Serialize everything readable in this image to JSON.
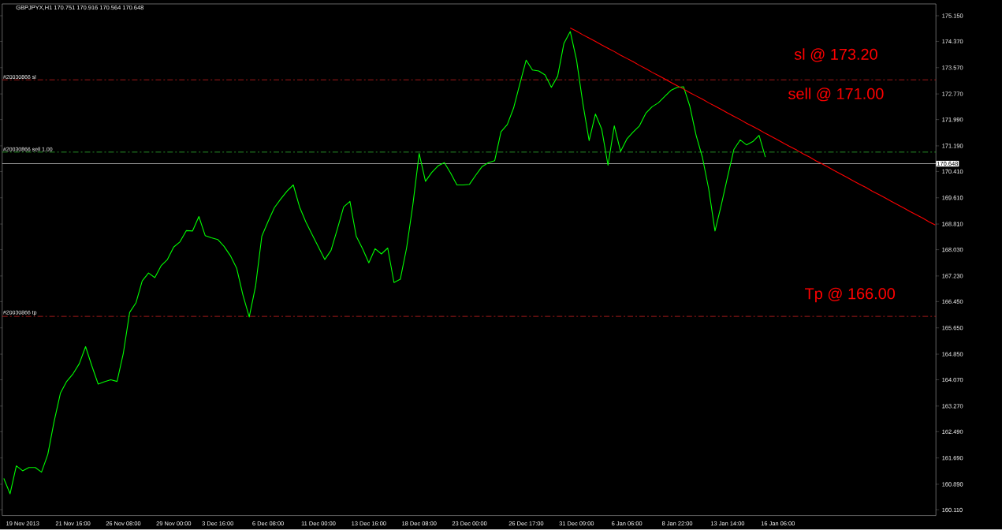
{
  "chart_data": {
    "type": "line",
    "title": "GBPJPYX,H1  170.751 170.916 170.564 170.648",
    "categories": [
      null,
      null,
      null,
      "19 Nov 2013",
      null,
      null,
      null,
      null,
      null,
      null,
      null,
      "21 Nov 16:00",
      null,
      null,
      null,
      null,
      null,
      null,
      null,
      "26 Nov 08:00",
      null,
      null,
      null,
      null,
      null,
      null,
      null,
      "29 Nov 00:00",
      null,
      null,
      null,
      null,
      null,
      null,
      "3 Dec 16:00",
      null,
      null,
      null,
      null,
      null,
      null,
      null,
      "6 Dec 08:00",
      null,
      null,
      null,
      null,
      null,
      null,
      null,
      "11 Dec 00:00",
      null,
      null,
      null,
      null,
      null,
      null,
      null,
      "13 Dec 16:00",
      null,
      null,
      null,
      null,
      null,
      null,
      null,
      "18 Dec 08:00",
      null,
      null,
      null,
      null,
      null,
      null,
      null,
      "23 Dec 00:00",
      null,
      null,
      null,
      null,
      null,
      null,
      null,
      null,
      "26 Dec 17:00",
      null,
      null,
      null,
      null,
      null,
      null,
      null,
      "31 Dec 09:00",
      null,
      null,
      null,
      null,
      null,
      null,
      null,
      "6 Jan 06:00",
      null,
      null,
      null,
      null,
      null,
      null,
      null,
      "8 Jan 22:00",
      null,
      null,
      null,
      null,
      null,
      null,
      null,
      "13 Jan 14:00",
      null,
      null,
      null,
      null,
      null,
      null,
      null,
      "16 Jan 06:00",
      null,
      null,
      null,
      null,
      null,
      null,
      null,
      null,
      null,
      null,
      null,
      null,
      null,
      null,
      null,
      null,
      null,
      null,
      null,
      null,
      null,
      null,
      null,
      null,
      null
    ],
    "ylim": [
      159.94,
      175.51
    ],
    "yticks": [
      {
        "value": 175.15,
        "label": "175.150"
      },
      {
        "value": 174.37,
        "label": "174.370"
      },
      {
        "value": 173.57,
        "label": "173.570"
      },
      {
        "value": 172.77,
        "label": "172.770"
      },
      {
        "value": 171.99,
        "label": "171.990"
      },
      {
        "value": 171.19,
        "label": "171.190"
      },
      {
        "value": 170.41,
        "label": "170.410"
      },
      {
        "value": 169.61,
        "label": "169.610"
      },
      {
        "value": 168.81,
        "label": "168.810"
      },
      {
        "value": 168.03,
        "label": "168.030"
      },
      {
        "value": 167.23,
        "label": "167.230"
      },
      {
        "value": 166.45,
        "label": "166.450"
      },
      {
        "value": 165.65,
        "label": "165.650"
      },
      {
        "value": 164.85,
        "label": "164.850"
      },
      {
        "value": 164.07,
        "label": "164.070"
      },
      {
        "value": 163.27,
        "label": "163.270"
      },
      {
        "value": 162.49,
        "label": "162.490"
      },
      {
        "value": 161.69,
        "label": "161.690"
      },
      {
        "value": 160.89,
        "label": "160.890"
      },
      {
        "value": 160.11,
        "label": "160.110"
      }
    ],
    "series": [
      {
        "color": "#00ff00",
        "values": [
          161.07,
          160.6,
          161.45,
          161.3,
          161.4,
          161.4,
          161.26,
          161.8,
          162.8,
          163.66,
          164.02,
          164.25,
          164.56,
          165.08,
          164.49,
          163.94,
          164.01,
          164.07,
          164.02,
          164.88,
          166.12,
          166.41,
          167.08,
          167.32,
          167.18,
          167.54,
          167.73,
          168.11,
          168.27,
          168.61,
          168.6,
          169.04,
          168.46,
          168.39,
          168.34,
          168.13,
          167.85,
          167.47,
          166.65,
          165.98,
          166.91,
          168.44,
          168.89,
          169.31,
          169.57,
          169.81,
          170.0,
          169.33,
          168.87,
          168.49,
          168.11,
          167.73,
          168.01,
          168.66,
          169.33,
          169.5,
          168.44,
          168.06,
          167.63,
          168.06,
          167.9,
          168.08,
          167.03,
          167.13,
          168.08,
          169.4,
          170.96,
          170.11,
          170.38,
          170.58,
          170.68,
          170.36,
          170.0,
          170.0,
          170.02,
          170.3,
          170.56,
          170.68,
          170.74,
          171.62,
          171.84,
          172.34,
          173.08,
          173.8,
          173.5,
          173.47,
          173.35,
          172.97,
          173.31,
          174.31,
          174.67,
          173.81,
          172.49,
          171.35,
          172.16,
          171.7,
          170.6,
          171.8,
          171.02,
          171.4,
          171.61,
          171.8,
          172.18,
          172.38,
          172.5,
          172.69,
          172.88,
          172.97,
          172.99,
          172.4,
          171.51,
          170.84,
          169.88,
          168.6,
          169.39,
          170.25,
          171.08,
          171.37,
          171.22,
          171.32,
          171.51,
          170.85,
          null,
          null,
          null,
          null,
          null,
          null,
          null,
          null,
          null,
          null,
          null,
          null,
          null,
          null,
          null,
          null,
          null,
          null,
          null,
          null,
          null,
          null,
          null,
          null,
          null,
          null,
          null
        ]
      },
      {
        "color": "#ff0000",
        "values": [
          null,
          null,
          null,
          null,
          null,
          null,
          null,
          null,
          null,
          null,
          null,
          null,
          null,
          null,
          null,
          null,
          null,
          null,
          null,
          null,
          null,
          null,
          null,
          null,
          null,
          null,
          null,
          null,
          null,
          null,
          null,
          null,
          null,
          null,
          null,
          null,
          null,
          null,
          null,
          null,
          null,
          null,
          null,
          null,
          null,
          null,
          null,
          null,
          null,
          null,
          null,
          null,
          null,
          null,
          null,
          null,
          null,
          null,
          null,
          null,
          null,
          null,
          null,
          null,
          null,
          null,
          null,
          null,
          null,
          null,
          null,
          null,
          null,
          null,
          null,
          null,
          null,
          null,
          null,
          null,
          null,
          null,
          null,
          null,
          null,
          null,
          null,
          null,
          null,
          null,
          174.78,
          174.68,
          174.57,
          174.47,
          174.37,
          174.26,
          174.16,
          174.06,
          173.95,
          173.85,
          173.75,
          173.64,
          173.54,
          173.43,
          173.33,
          173.23,
          173.12,
          173.02,
          172.92,
          172.81,
          172.71,
          172.61,
          172.5,
          172.4,
          172.3,
          172.19,
          172.09,
          171.99,
          171.88,
          171.78,
          171.68,
          171.57,
          171.47,
          171.37,
          171.26,
          171.16,
          171.06,
          170.95,
          170.85,
          170.74,
          170.64,
          170.54,
          170.43,
          170.33,
          170.23,
          170.12,
          170.02,
          169.92,
          169.81,
          169.71,
          169.61,
          169.5,
          169.4,
          169.3,
          169.19,
          169.09,
          168.99,
          168.88,
          168.78
        ]
      }
    ],
    "ref_lines": [
      {
        "axis": "y",
        "value": 173.2,
        "label": "#20030866 sl",
        "color": "#c81e1e",
        "line_style": "dashed"
      },
      {
        "axis": "y",
        "value": 171.0,
        "label": "#20030866 sell 1.00",
        "color": "#32b432",
        "line_style": "dashed"
      },
      {
        "axis": "y",
        "value": 170.648,
        "label": "170.648",
        "color": "#c0c0c0",
        "line_style": "solid"
      },
      {
        "axis": "y",
        "value": 166.0,
        "label": "#20030866 tp",
        "color": "#c81e1e",
        "line_style": "dashed"
      }
    ],
    "annotations": [
      "sl @ 173.20",
      "sell @ 171.00",
      "Tp @ 166.00"
    ]
  }
}
